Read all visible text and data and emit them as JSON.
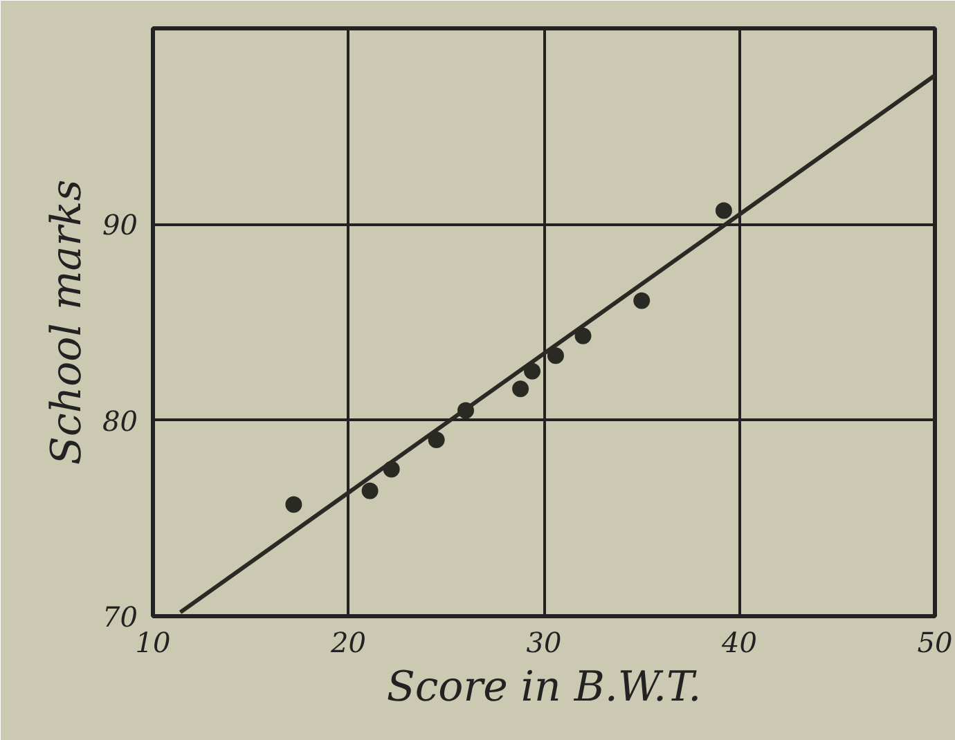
{
  "chart_data": {
    "type": "scatter",
    "xlabel": "Score in B.W.T.",
    "ylabel": "School marks",
    "xlim": [
      10,
      50
    ],
    "ylim": [
      70,
      100
    ],
    "xticks": [
      10,
      20,
      30,
      40,
      50
    ],
    "yticks": [
      70,
      80,
      90
    ],
    "grid": true,
    "series": [
      {
        "marker": "circle",
        "color": "#2a2a25",
        "x": [
          17.2,
          21.1,
          22.2,
          24.5,
          26.0,
          28.8,
          29.4,
          30.6,
          32.0,
          35.0,
          39.2
        ],
        "values": [
          75.7,
          76.4,
          77.5,
          79.0,
          80.5,
          81.6,
          82.5,
          83.3,
          84.3,
          86.1,
          90.7
        ]
      },
      {
        "type": "line",
        "color": "#2a2a25",
        "x": [
          11.4,
          50
        ],
        "values": [
          70.2,
          97.6
        ],
        "line_style": "solid"
      }
    ]
  }
}
